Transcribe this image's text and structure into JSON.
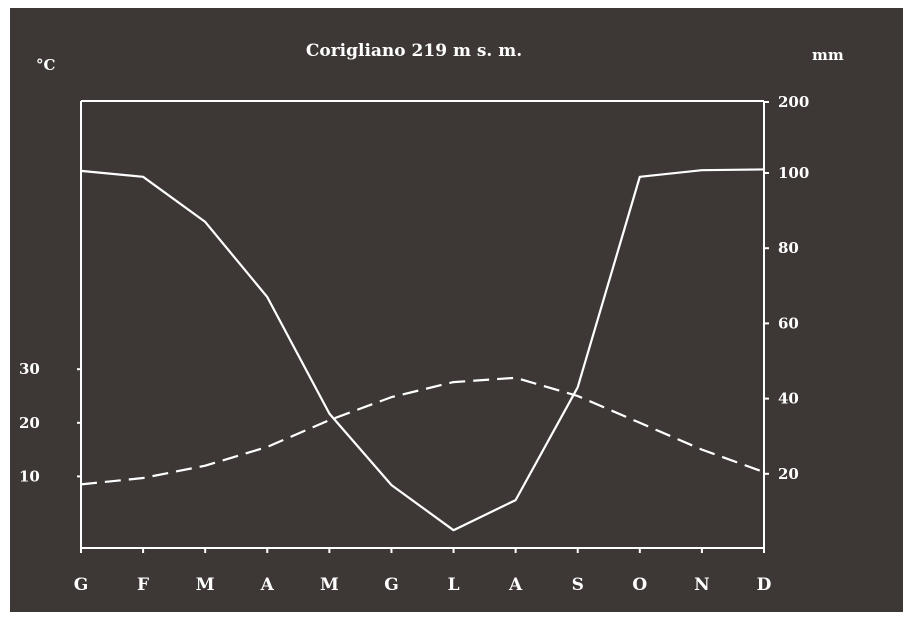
{
  "chart_data": {
    "type": "line",
    "title": "Corigliano 219  m s. m.",
    "left_axis": {
      "unit": "°C",
      "ticks": [
        10,
        20,
        30
      ]
    },
    "right_axis": {
      "unit": "mm",
      "ticks": [
        20,
        40,
        60,
        80,
        100,
        200
      ]
    },
    "categories": [
      "G",
      "F",
      "M",
      "A",
      "M",
      "G",
      "L",
      "A",
      "S",
      "O",
      "N",
      "D"
    ],
    "series": [
      {
        "axis": "right",
        "style": "solid",
        "values": [
          103,
          99,
          87,
          67,
          36,
          17,
          5,
          13,
          43,
          99,
          104,
          105
        ]
      },
      {
        "axis": "left",
        "style": "dashed",
        "values": [
          8.5,
          9.7,
          12.0,
          15.5,
          20.5,
          24.8,
          27.6,
          28.4,
          25.0,
          20.0,
          15.0,
          10.8
        ]
      }
    ],
    "grid": false,
    "legend": "none"
  }
}
